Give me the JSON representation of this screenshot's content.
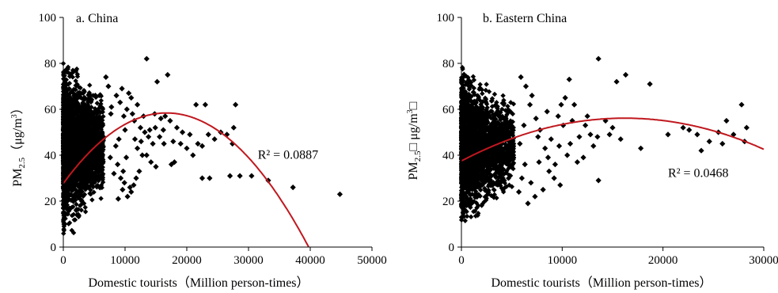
{
  "colors": {
    "points": "#000000",
    "trend": "#c0181e",
    "axis": "#000000"
  },
  "chart_data": [
    {
      "type": "scatter",
      "panel_label": "a. China",
      "xlabel": "Domestic tourists（Million person-times）",
      "ylabel_main": "PM",
      "ylabel_sub": "2.5",
      "ylabel_open": "（",
      "ylabel_unit_pre": "μg/m",
      "ylabel_unit_sup": "3",
      "ylabel_close": "）",
      "xlim": [
        0,
        50000
      ],
      "ylim": [
        0,
        100
      ],
      "xticks": [
        "0",
        "10000",
        "20000",
        "30000",
        "40000",
        "50000"
      ],
      "yticks": [
        "0",
        "20",
        "40",
        "60",
        "80",
        "100"
      ],
      "trendline": {
        "type": "polynomial-2",
        "coef": [
          27.7,
          0.003675,
          -1.1e-07
        ]
      },
      "r2_label": "R² = 0.0887",
      "r2_at": [
        31500,
        38.5
      ],
      "cloud": {
        "seed": 7,
        "n": 2600,
        "xmax": 6500,
        "ymin": 2,
        "ymax": 91
      },
      "points": [
        [
          13500,
          82
        ],
        [
          16900,
          75
        ],
        [
          15200,
          72
        ],
        [
          21500,
          62
        ],
        [
          23000,
          62
        ],
        [
          27900,
          62
        ],
        [
          11000,
          65
        ],
        [
          12000,
          62
        ],
        [
          10300,
          60
        ],
        [
          9800,
          57
        ],
        [
          11500,
          55
        ],
        [
          12500,
          52
        ],
        [
          14800,
          58
        ],
        [
          15800,
          56
        ],
        [
          16500,
          57
        ],
        [
          17300,
          55
        ],
        [
          18400,
          52
        ],
        [
          19300,
          50
        ],
        [
          20500,
          49
        ],
        [
          21800,
          45
        ],
        [
          22500,
          44
        ],
        [
          23500,
          49
        ],
        [
          24500,
          47
        ],
        [
          25500,
          50
        ],
        [
          26500,
          49
        ],
        [
          27400,
          45
        ],
        [
          27600,
          52
        ],
        [
          13200,
          50
        ],
        [
          13800,
          48
        ],
        [
          14500,
          45
        ],
        [
          15600,
          48
        ],
        [
          16300,
          45
        ],
        [
          13500,
          40
        ],
        [
          14200,
          37
        ],
        [
          15000,
          35
        ],
        [
          17500,
          36
        ],
        [
          18000,
          37
        ],
        [
          12300,
          33
        ],
        [
          11800,
          30
        ],
        [
          11400,
          27
        ],
        [
          10800,
          26
        ],
        [
          11000,
          24
        ],
        [
          10400,
          22
        ],
        [
          9900,
          28
        ],
        [
          9300,
          30
        ],
        [
          9600,
          25
        ],
        [
          22500,
          30
        ],
        [
          23700,
          30
        ],
        [
          27000,
          31
        ],
        [
          28600,
          31
        ],
        [
          30500,
          31
        ],
        [
          33200,
          29
        ],
        [
          37200,
          26
        ],
        [
          44800,
          23
        ],
        [
          9000,
          47
        ],
        [
          8500,
          44
        ],
        [
          10000,
          51
        ],
        [
          12000,
          43
        ],
        [
          12800,
          40
        ],
        [
          14000,
          51
        ],
        [
          10200,
          39
        ],
        [
          8800,
          36
        ],
        [
          8200,
          32
        ],
        [
          7600,
          39
        ],
        [
          9200,
          63
        ],
        [
          10600,
          67
        ],
        [
          11200,
          58
        ],
        [
          13000,
          57
        ],
        [
          11600,
          47
        ],
        [
          12600,
          46
        ],
        [
          14900,
          52
        ],
        [
          16200,
          51
        ],
        [
          19000,
          45
        ],
        [
          21000,
          40
        ],
        [
          17800,
          46
        ],
        [
          20000,
          43
        ],
        [
          7700,
          58
        ],
        [
          8600,
          66
        ],
        [
          9500,
          69
        ],
        [
          7300,
          70
        ],
        [
          6900,
          74
        ],
        [
          7800,
          61
        ],
        [
          8900,
          21
        ],
        [
          9700,
          33
        ]
      ]
    },
    {
      "type": "scatter",
      "panel_label": "b. Eastern China",
      "xlabel": "Domestic tourists（Million person-times）",
      "ylabel_main": "PM",
      "ylabel_sub": "2.5",
      "ylabel_open": "□",
      "ylabel_unit_pre": " μg/m",
      "ylabel_unit_sup": "3",
      "ylabel_close": "□",
      "xlim": [
        0,
        30000
      ],
      "ylim": [
        0,
        100
      ],
      "xticks": [
        "0",
        "10000",
        "20000",
        "30000"
      ],
      "yticks": [
        "0",
        "20",
        "40",
        "60",
        "80",
        "100"
      ],
      "trendline": {
        "type": "polynomial-2",
        "coef": [
          37.5,
          0.0023,
          -7.1e-08
        ]
      },
      "r2_label": "R² = 0.0468",
      "r2_at": [
        20500,
        30.5
      ],
      "cloud": {
        "seed": 19,
        "n": 2300,
        "xmax": 5200,
        "ymin": 11,
        "ymax": 91
      },
      "points": [
        [
          13600,
          82
        ],
        [
          16300,
          75
        ],
        [
          15400,
          72
        ],
        [
          18700,
          71
        ],
        [
          10700,
          73
        ],
        [
          10300,
          65
        ],
        [
          9900,
          62
        ],
        [
          11200,
          62
        ],
        [
          9600,
          57
        ],
        [
          10100,
          53
        ],
        [
          11000,
          55
        ],
        [
          12300,
          53
        ],
        [
          12800,
          49
        ],
        [
          13500,
          48
        ],
        [
          14700,
          49
        ],
        [
          15800,
          47
        ],
        [
          17800,
          43
        ],
        [
          20500,
          49
        ],
        [
          22000,
          52
        ],
        [
          22600,
          51
        ],
        [
          23400,
          49
        ],
        [
          23800,
          42
        ],
        [
          24600,
          46
        ],
        [
          25500,
          50
        ],
        [
          25900,
          45
        ],
        [
          26300,
          55
        ],
        [
          27000,
          49
        ],
        [
          27800,
          62
        ],
        [
          28300,
          52
        ],
        [
          28100,
          46
        ],
        [
          12100,
          39
        ],
        [
          13600,
          29
        ],
        [
          11500,
          37
        ],
        [
          10500,
          40
        ],
        [
          9700,
          44
        ],
        [
          8900,
          47
        ],
        [
          8300,
          43
        ],
        [
          7800,
          51
        ],
        [
          7400,
          56
        ],
        [
          8500,
          59
        ],
        [
          6800,
          62
        ],
        [
          7000,
          66
        ],
        [
          7600,
          48
        ],
        [
          8700,
          33
        ],
        [
          9200,
          30
        ],
        [
          9800,
          27
        ],
        [
          8100,
          25
        ],
        [
          7300,
          22
        ],
        [
          6600,
          19
        ],
        [
          6900,
          28
        ],
        [
          7700,
          37
        ],
        [
          8600,
          39
        ],
        [
          9300,
          36
        ],
        [
          10800,
          45
        ],
        [
          11700,
          48
        ],
        [
          12500,
          57
        ],
        [
          13100,
          44
        ],
        [
          14300,
          55
        ],
        [
          15000,
          52
        ],
        [
          6400,
          70
        ],
        [
          5900,
          74
        ],
        [
          6200,
          53
        ],
        [
          5800,
          45
        ],
        [
          6300,
          36
        ],
        [
          6000,
          30
        ],
        [
          5700,
          24
        ]
      ]
    }
  ]
}
